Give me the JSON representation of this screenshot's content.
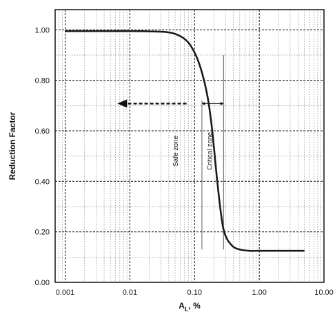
{
  "chart_data": {
    "type": "line",
    "x_scale": "log",
    "xlabel_main": "A",
    "xlabel_sub": "L",
    "xlabel_suffix": ", %",
    "ylabel": "Reduction Factor",
    "xlim": [
      0.0007,
      10
    ],
    "ylim": [
      0,
      1.08
    ],
    "x_ticks": [
      {
        "value": 0.001,
        "label": "0.001"
      },
      {
        "value": 0.01,
        "label": "0.01"
      },
      {
        "value": 0.1,
        "label": "0.10"
      },
      {
        "value": 1,
        "label": "1.00"
      },
      {
        "value": 10,
        "label": "10.00"
      }
    ],
    "y_ticks": [
      {
        "value": 0,
        "label": "0.00"
      },
      {
        "value": 0.2,
        "label": "0.20"
      },
      {
        "value": 0.4,
        "label": "0.40"
      },
      {
        "value": 0.6,
        "label": "0.60"
      },
      {
        "value": 0.8,
        "label": "0.80"
      },
      {
        "value": 1.0,
        "label": "1.00"
      }
    ],
    "grid": true,
    "series": [
      {
        "x": [
          0.001,
          0.003,
          0.01,
          0.02,
          0.04,
          0.06,
          0.08,
          0.1,
          0.12,
          0.14,
          0.16,
          0.18,
          0.2,
          0.22,
          0.24,
          0.26,
          0.28,
          0.32,
          0.4,
          0.5,
          0.7,
          1.0,
          2.0,
          5.0
        ],
        "y": [
          0.995,
          0.995,
          0.995,
          0.994,
          0.99,
          0.975,
          0.95,
          0.91,
          0.86,
          0.8,
          0.73,
          0.64,
          0.53,
          0.42,
          0.33,
          0.26,
          0.21,
          0.17,
          0.14,
          0.13,
          0.125,
          0.125,
          0.125,
          0.125
        ]
      }
    ],
    "annotations": {
      "safe_zone": "Safe zone",
      "critical_zone": "Critical zone"
    }
  },
  "colors": {
    "curve": "#1a1a1a",
    "grid": "#555555",
    "axis": "#111111"
  }
}
